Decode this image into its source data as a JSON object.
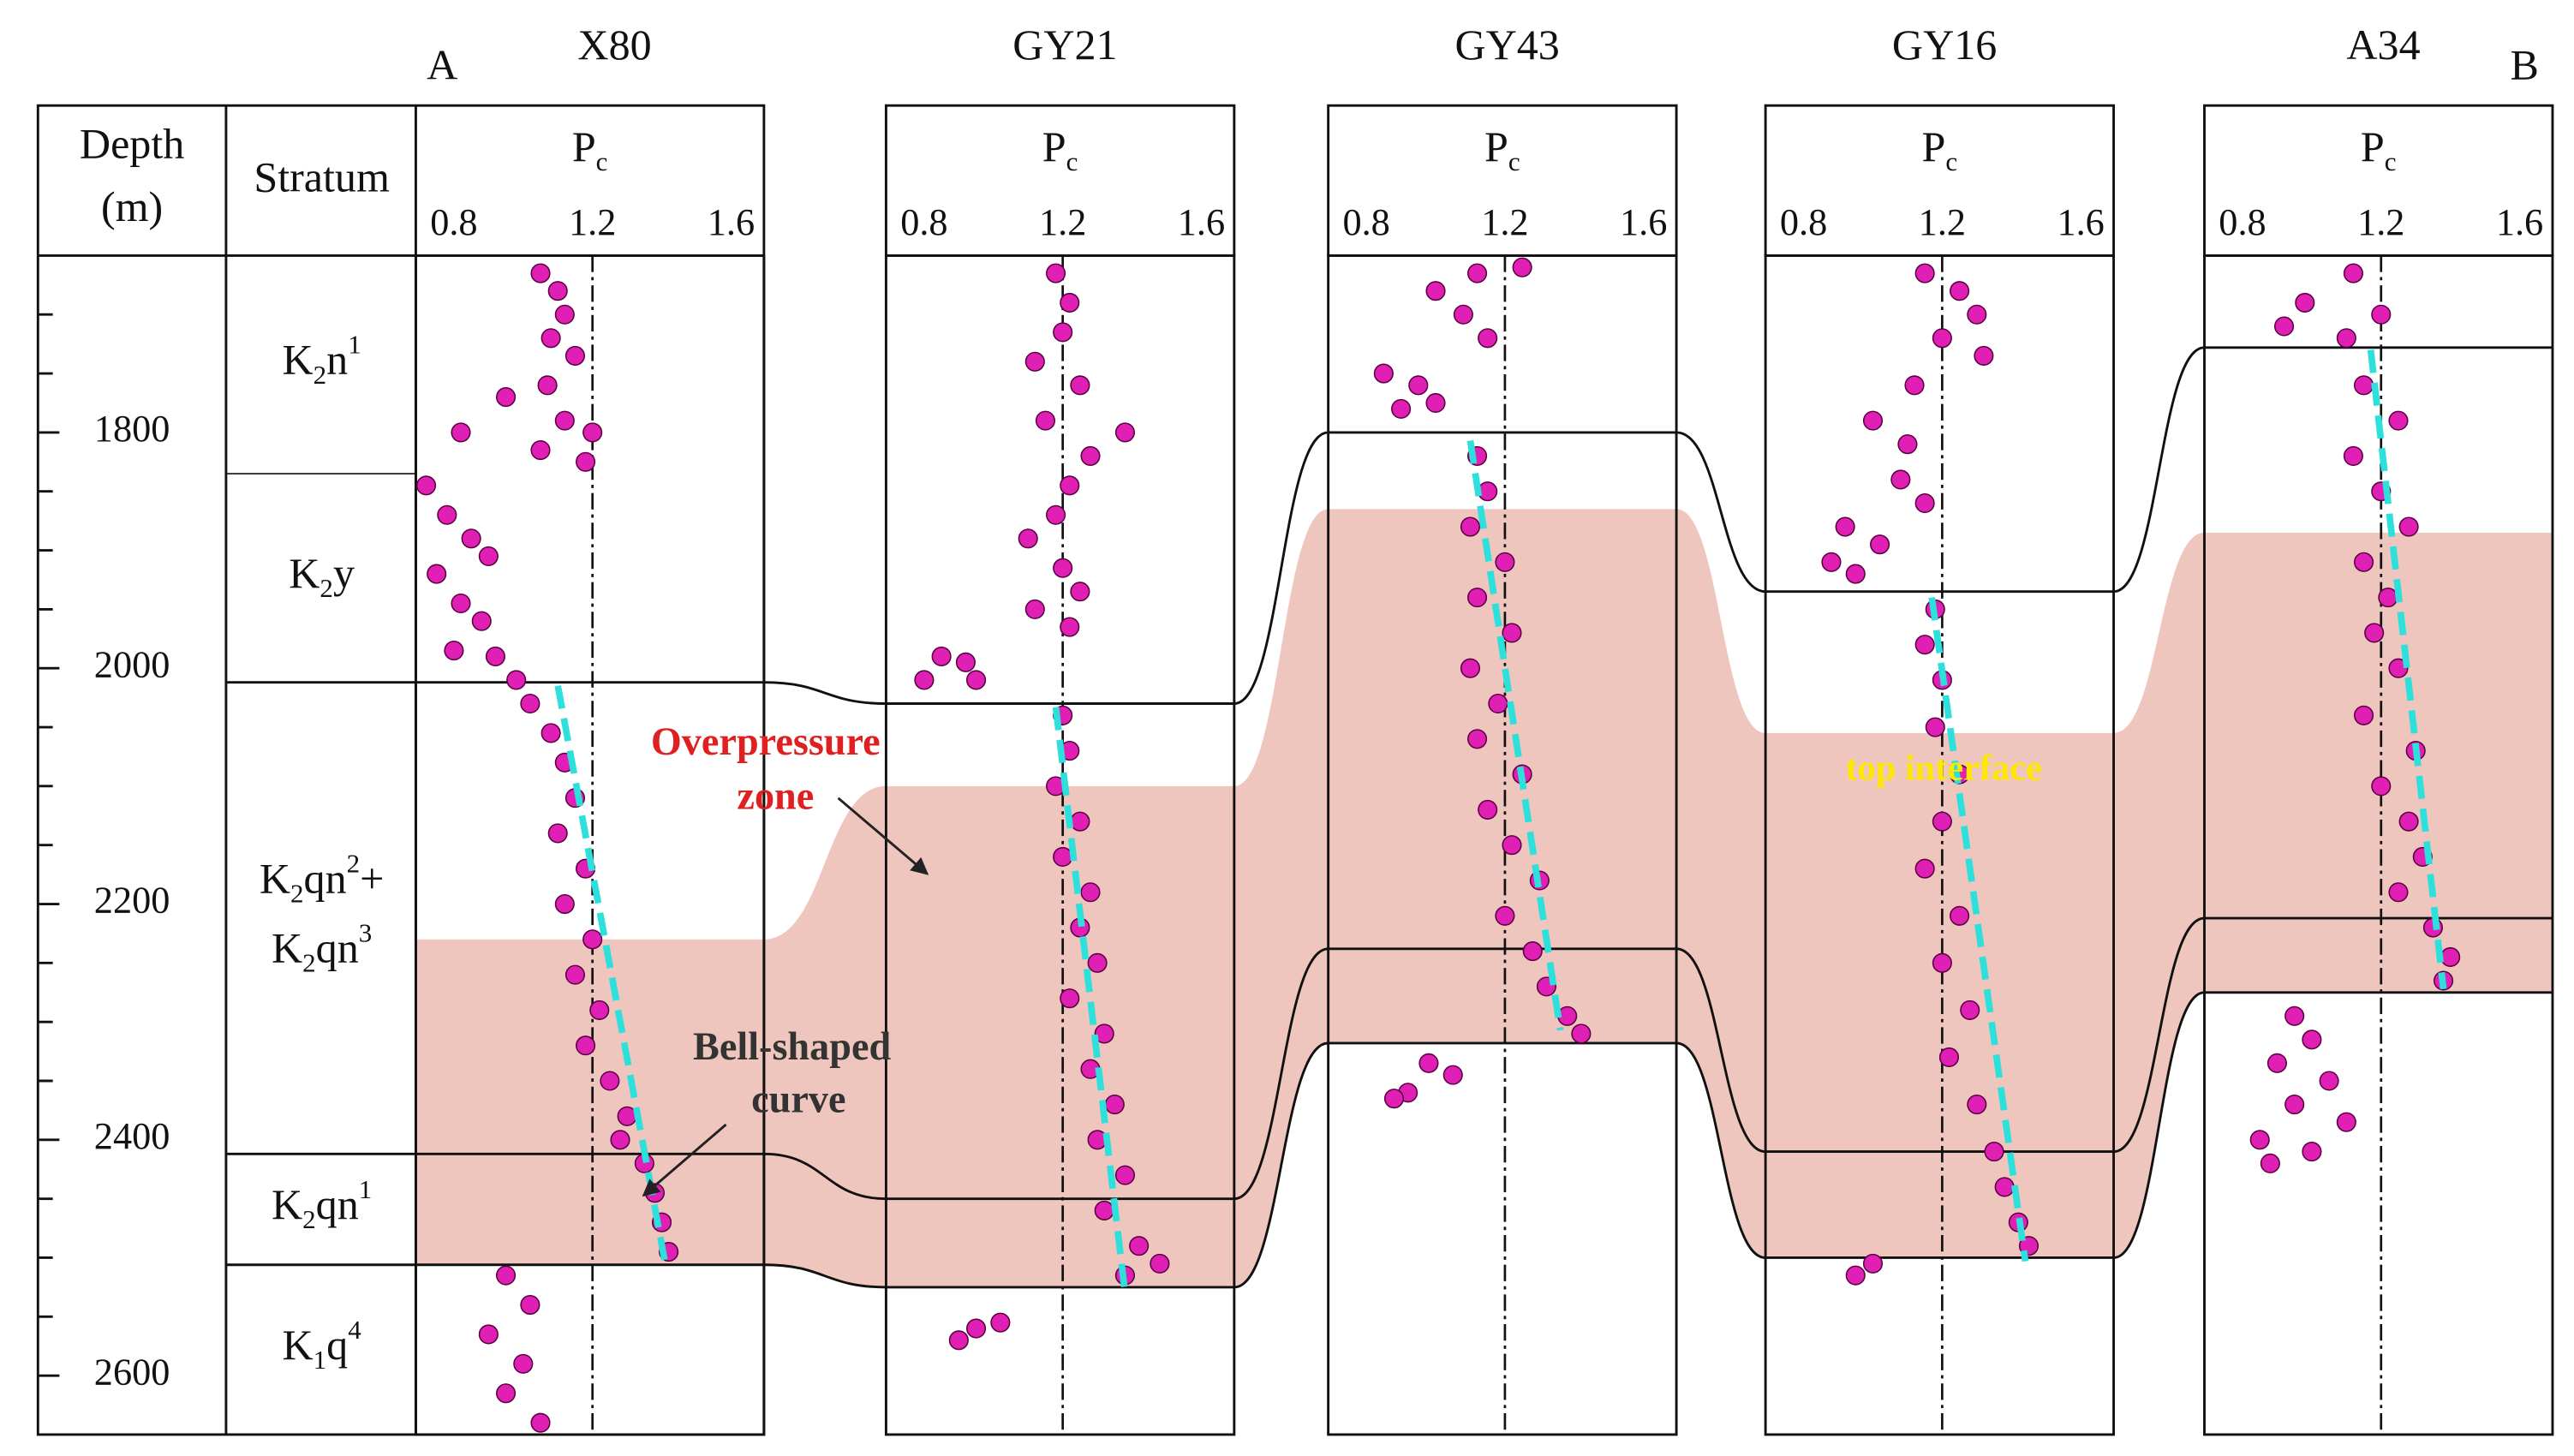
{
  "labels": {
    "left": "A",
    "right": "B"
  },
  "header": {
    "depth": [
      "Depth",
      "(m)"
    ],
    "stratum": "Stratum",
    "pc": [
      {
        "text": "P"
      },
      {
        "text": "c",
        "pos": "sub"
      }
    ]
  },
  "depth_axis": {
    "ylim": [
      1650,
      2650
    ],
    "ticks": [
      1800,
      2000,
      2200,
      2400,
      2600
    ],
    "minor_ticks": [
      1700,
      1750,
      1850,
      1900,
      1950,
      2050,
      2100,
      2150,
      2250,
      2300,
      2350,
      2450,
      2500,
      2550
    ]
  },
  "pc_axis": {
    "xlim": [
      0.69,
      1.695
    ],
    "ticks": [
      0.8,
      1.2,
      1.6
    ],
    "reference": 1.2
  },
  "strata": [
    {
      "label": [
        [
          {
            "text": "K"
          },
          {
            "text": "2",
            "pos": "sub"
          },
          {
            "text": "n"
          },
          {
            "text": "1",
            "pos": "sup"
          }
        ]
      ],
      "top": 1650,
      "bottom": 1835
    },
    {
      "label": [
        [
          {
            "text": "K"
          },
          {
            "text": "2",
            "pos": "sub"
          },
          {
            "text": "y"
          }
        ]
      ],
      "top": 1835,
      "bottom": 2012
    },
    {
      "label": [
        [
          {
            "text": "K"
          },
          {
            "text": "2",
            "pos": "sub"
          },
          {
            "text": "qn"
          },
          {
            "text": "2",
            "pos": "sup"
          },
          {
            "text": "+"
          }
        ],
        [
          {
            "text": "K"
          },
          {
            "text": "2",
            "pos": "sub"
          },
          {
            "text": "qn"
          },
          {
            "text": "3",
            "pos": "sup"
          }
        ]
      ],
      "top": 2012,
      "bottom": 2412
    },
    {
      "label": [
        [
          {
            "text": "K"
          },
          {
            "text": "2",
            "pos": "sub"
          },
          {
            "text": "qn"
          },
          {
            "text": "1",
            "pos": "sup"
          }
        ]
      ],
      "top": 2412,
      "bottom": 2506
    },
    {
      "label": [
        [
          {
            "text": "K"
          },
          {
            "text": "1",
            "pos": "sub"
          },
          {
            "text": "q"
          },
          {
            "text": "4",
            "pos": "sup"
          }
        ]
      ],
      "top": 2506,
      "bottom": 2650
    }
  ],
  "wells": [
    {
      "name": "X80",
      "horizons": [
        2012,
        2412,
        2506
      ],
      "overpressure_top": 2230,
      "trend": [
        [
          1.1,
          2015
        ],
        [
          1.41,
          2505
        ]
      ],
      "points": [
        [
          1.05,
          1665
        ],
        [
          1.1,
          1680
        ],
        [
          1.12,
          1700
        ],
        [
          1.08,
          1720
        ],
        [
          1.15,
          1735
        ],
        [
          1.07,
          1760
        ],
        [
          0.95,
          1770
        ],
        [
          1.12,
          1790
        ],
        [
          1.2,
          1800
        ],
        [
          1.05,
          1815
        ],
        [
          0.82,
          1800
        ],
        [
          1.18,
          1825
        ],
        [
          0.72,
          1845
        ],
        [
          0.78,
          1870
        ],
        [
          0.85,
          1890
        ],
        [
          0.9,
          1905
        ],
        [
          0.75,
          1920
        ],
        [
          0.82,
          1945
        ],
        [
          0.88,
          1960
        ],
        [
          0.8,
          1985
        ],
        [
          0.92,
          1990
        ],
        [
          0.98,
          2010
        ],
        [
          1.02,
          2030
        ],
        [
          1.08,
          2055
        ],
        [
          1.12,
          2080
        ],
        [
          1.15,
          2110
        ],
        [
          1.1,
          2140
        ],
        [
          1.18,
          2170
        ],
        [
          1.12,
          2200
        ],
        [
          1.2,
          2230
        ],
        [
          1.15,
          2260
        ],
        [
          1.22,
          2290
        ],
        [
          1.18,
          2320
        ],
        [
          1.25,
          2350
        ],
        [
          1.3,
          2380
        ],
        [
          1.28,
          2400
        ],
        [
          1.35,
          2420
        ],
        [
          1.38,
          2445
        ],
        [
          1.4,
          2470
        ],
        [
          1.42,
          2495
        ],
        [
          0.95,
          2515
        ],
        [
          1.02,
          2540
        ],
        [
          0.9,
          2565
        ],
        [
          1.0,
          2590
        ],
        [
          0.95,
          2615
        ],
        [
          1.05,
          2640
        ]
      ]
    },
    {
      "name": "GY21",
      "horizons": [
        2030,
        2450,
        2525
      ],
      "overpressure_top": 2100,
      "trend": [
        [
          1.18,
          2033
        ],
        [
          1.38,
          2530
        ]
      ],
      "points": [
        [
          1.18,
          1665
        ],
        [
          1.22,
          1690
        ],
        [
          1.2,
          1715
        ],
        [
          1.12,
          1740
        ],
        [
          1.25,
          1760
        ],
        [
          1.15,
          1790
        ],
        [
          1.38,
          1800
        ],
        [
          1.28,
          1820
        ],
        [
          1.22,
          1845
        ],
        [
          1.18,
          1870
        ],
        [
          1.1,
          1890
        ],
        [
          1.2,
          1915
        ],
        [
          1.25,
          1935
        ],
        [
          1.12,
          1950
        ],
        [
          1.22,
          1965
        ],
        [
          0.85,
          1990
        ],
        [
          0.92,
          1995
        ],
        [
          0.8,
          2010
        ],
        [
          0.95,
          2010
        ],
        [
          1.2,
          2040
        ],
        [
          1.22,
          2070
        ],
        [
          1.18,
          2100
        ],
        [
          1.25,
          2130
        ],
        [
          1.2,
          2160
        ],
        [
          1.28,
          2190
        ],
        [
          1.25,
          2220
        ],
        [
          1.3,
          2250
        ],
        [
          1.22,
          2280
        ],
        [
          1.32,
          2310
        ],
        [
          1.28,
          2340
        ],
        [
          1.35,
          2370
        ],
        [
          1.3,
          2400
        ],
        [
          1.38,
          2430
        ],
        [
          1.32,
          2460
        ],
        [
          1.42,
          2490
        ],
        [
          1.38,
          2515
        ],
        [
          1.48,
          2505
        ],
        [
          0.95,
          2560
        ],
        [
          0.9,
          2570
        ],
        [
          1.02,
          2555
        ]
      ]
    },
    {
      "name": "GY43",
      "horizons": [
        1800,
        2238,
        2318
      ],
      "overpressure_top": 1865,
      "trend": [
        [
          1.1,
          1807
        ],
        [
          1.36,
          2307
        ]
      ],
      "points": [
        [
          1.12,
          1665
        ],
        [
          1.0,
          1680
        ],
        [
          1.08,
          1700
        ],
        [
          1.15,
          1720
        ],
        [
          1.25,
          1660
        ],
        [
          0.85,
          1750
        ],
        [
          0.95,
          1760
        ],
        [
          0.9,
          1780
        ],
        [
          1.0,
          1775
        ],
        [
          1.12,
          1820
        ],
        [
          1.15,
          1850
        ],
        [
          1.1,
          1880
        ],
        [
          1.2,
          1910
        ],
        [
          1.12,
          1940
        ],
        [
          1.22,
          1970
        ],
        [
          1.1,
          2000
        ],
        [
          1.18,
          2030
        ],
        [
          1.12,
          2060
        ],
        [
          1.25,
          2090
        ],
        [
          1.15,
          2120
        ],
        [
          1.22,
          2150
        ],
        [
          1.3,
          2180
        ],
        [
          1.2,
          2210
        ],
        [
          1.28,
          2240
        ],
        [
          1.32,
          2270
        ],
        [
          1.38,
          2295
        ],
        [
          1.42,
          2310
        ],
        [
          0.98,
          2335
        ],
        [
          1.05,
          2345
        ],
        [
          0.92,
          2360
        ],
        [
          0.88,
          2365
        ]
      ]
    },
    {
      "name": "GY16",
      "horizons": [
        1935,
        2410,
        2500
      ],
      "overpressure_top": 2055,
      "trend": [
        [
          1.17,
          1940
        ],
        [
          1.44,
          2503
        ]
      ],
      "points": [
        [
          1.15,
          1665
        ],
        [
          1.25,
          1680
        ],
        [
          1.3,
          1700
        ],
        [
          1.2,
          1720
        ],
        [
          1.32,
          1735
        ],
        [
          1.12,
          1760
        ],
        [
          1.0,
          1790
        ],
        [
          1.1,
          1810
        ],
        [
          1.08,
          1840
        ],
        [
          1.15,
          1860
        ],
        [
          0.92,
          1880
        ],
        [
          1.02,
          1895
        ],
        [
          0.88,
          1910
        ],
        [
          0.95,
          1920
        ],
        [
          1.18,
          1950
        ],
        [
          1.15,
          1980
        ],
        [
          1.2,
          2010
        ],
        [
          1.18,
          2050
        ],
        [
          1.25,
          2090
        ],
        [
          1.2,
          2130
        ],
        [
          1.15,
          2170
        ],
        [
          1.25,
          2210
        ],
        [
          1.2,
          2250
        ],
        [
          1.28,
          2290
        ],
        [
          1.22,
          2330
        ],
        [
          1.3,
          2370
        ],
        [
          1.35,
          2410
        ],
        [
          1.38,
          2440
        ],
        [
          1.42,
          2470
        ],
        [
          1.45,
          2490
        ],
        [
          1.0,
          2505
        ],
        [
          0.95,
          2515
        ]
      ]
    },
    {
      "name": "A34",
      "horizons": [
        1728,
        2212,
        2275
      ],
      "overpressure_top": 1885,
      "trend": [
        [
          1.17,
          1730
        ],
        [
          1.38,
          2272
        ]
      ],
      "points": [
        [
          1.12,
          1665
        ],
        [
          0.98,
          1690
        ],
        [
          0.92,
          1710
        ],
        [
          1.1,
          1720
        ],
        [
          1.2,
          1700
        ],
        [
          1.15,
          1760
        ],
        [
          1.25,
          1790
        ],
        [
          1.12,
          1820
        ],
        [
          1.2,
          1850
        ],
        [
          1.28,
          1880
        ],
        [
          1.15,
          1910
        ],
        [
          1.22,
          1940
        ],
        [
          1.18,
          1970
        ],
        [
          1.25,
          2000
        ],
        [
          1.15,
          2040
        ],
        [
          1.3,
          2070
        ],
        [
          1.2,
          2100
        ],
        [
          1.28,
          2130
        ],
        [
          1.32,
          2160
        ],
        [
          1.25,
          2190
        ],
        [
          1.35,
          2220
        ],
        [
          1.4,
          2245
        ],
        [
          1.38,
          2265
        ],
        [
          0.95,
          2295
        ],
        [
          1.0,
          2315
        ],
        [
          0.9,
          2335
        ],
        [
          1.05,
          2350
        ],
        [
          0.95,
          2370
        ],
        [
          1.1,
          2385
        ],
        [
          0.85,
          2400
        ],
        [
          1.0,
          2410
        ],
        [
          0.88,
          2420
        ]
      ]
    }
  ],
  "annotations": {
    "overpressure": [
      "Overpressure",
      "zone"
    ],
    "bell": [
      "Bell-shaped",
      "curve"
    ],
    "top_interface": "top interface"
  }
}
